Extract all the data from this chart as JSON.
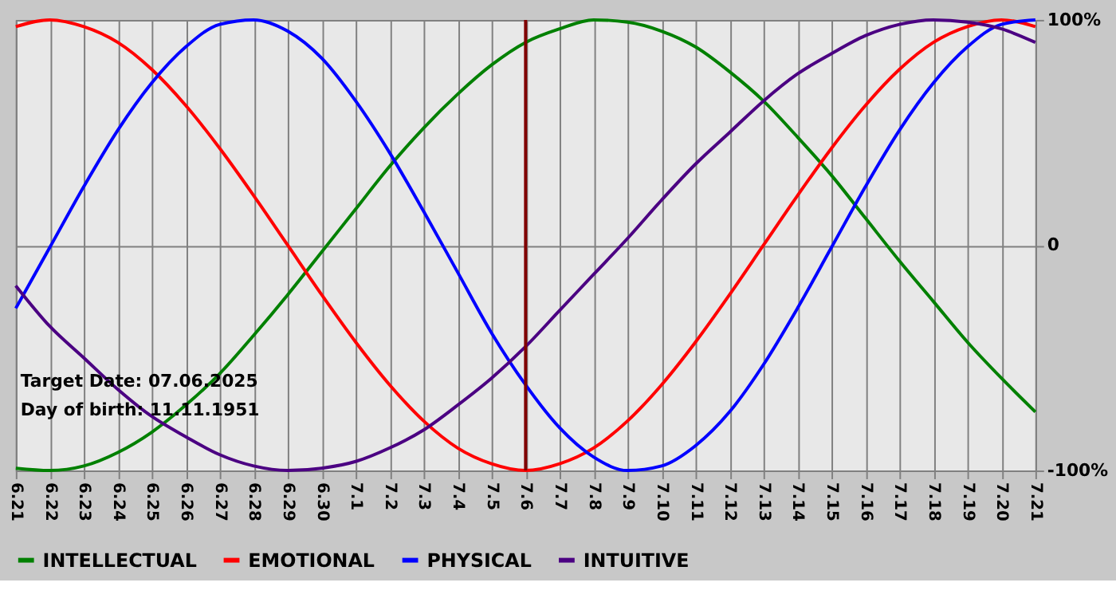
{
  "chart_data": {
    "type": "line",
    "categories": [
      "6.21",
      "6.22",
      "6.23",
      "6.24",
      "6.25",
      "6.26",
      "6.27",
      "6.28",
      "6.29",
      "6.30",
      "7.1",
      "7.2",
      "7.3",
      "7.4",
      "7.5",
      "7.6",
      "7.7",
      "7.8",
      "7.9",
      "7.10",
      "7.11",
      "7.12",
      "7.13",
      "7.14",
      "7.15",
      "7.16",
      "7.17",
      "7.18",
      "7.19",
      "7.20",
      "7.21"
    ],
    "series": [
      {
        "name": "INTELLECTUAL",
        "color": "#008000",
        "values": [
          -99,
          -100,
          -98,
          -92,
          -83,
          -71,
          -57,
          -40,
          -22,
          -3,
          16,
          35,
          52,
          67,
          80,
          90,
          96,
          100,
          99,
          95,
          88,
          77,
          64,
          48,
          31,
          12,
          -7,
          -25,
          -43,
          -59,
          -74
        ]
      },
      {
        "name": "EMOTIONAL",
        "color": "#ff0000",
        "values": [
          97,
          100,
          97,
          90,
          78,
          62,
          43,
          22,
          0,
          -22,
          -43,
          -62,
          -78,
          -90,
          -97,
          -100,
          -97,
          -90,
          -78,
          -62,
          -43,
          -22,
          0,
          22,
          43,
          62,
          78,
          90,
          97,
          100,
          97
        ]
      },
      {
        "name": "PHYSICAL",
        "color": "#0000ff",
        "values": [
          -28,
          -1,
          26,
          51,
          72,
          88,
          98,
          100,
          95,
          83,
          64,
          41,
          15,
          -12,
          -39,
          -62,
          -81,
          -94,
          -100,
          -98,
          -89,
          -74,
          -53,
          -28,
          -1,
          26,
          51,
          72,
          88,
          98,
          100
        ]
      },
      {
        "name": "INTUITIVE",
        "color": "#4b0082",
        "values": [
          -18,
          -36,
          -50,
          -64,
          -76,
          -85,
          -93,
          -98,
          -100,
          -99,
          -96,
          -90,
          -82,
          -71,
          -59,
          -45,
          -29,
          -13,
          3,
          20,
          36,
          50,
          64,
          76,
          85,
          93,
          98,
          100,
          99,
          96,
          90
        ]
      }
    ],
    "ylim": [
      -100,
      100
    ],
    "yticks": [
      {
        "value": 100,
        "label": "100%"
      },
      0,
      {
        "value": -100,
        "label": "-100%"
      }
    ],
    "ref_lines": [
      {
        "axis": "x",
        "value": "7.6",
        "color": "#800000"
      }
    ],
    "annotations": [
      "Target Date: 07.06.2025",
      "Day of birth: 11.11.1951"
    ],
    "grid": true,
    "legend": "bottom left",
    "marker": "none",
    "line_style": "solid"
  }
}
